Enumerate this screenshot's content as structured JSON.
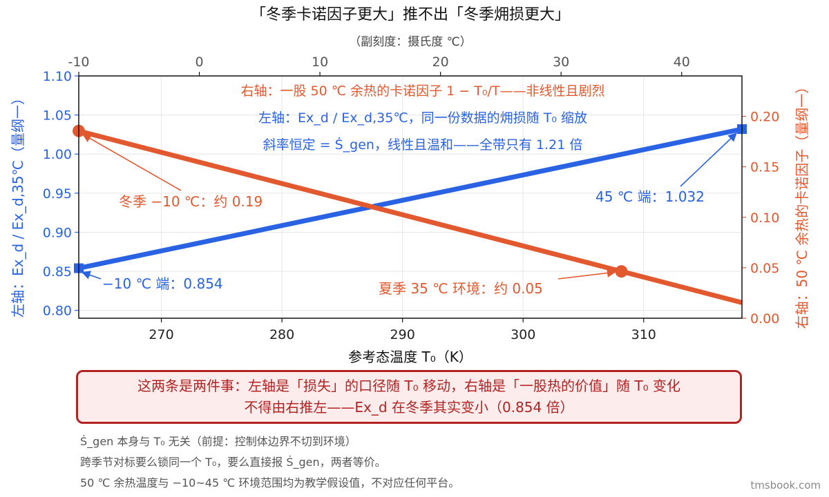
{
  "chart_data": {
    "type": "line",
    "title": "「冬季卡诺因子更大」推不出「冬季㶲损更大」",
    "top_axis": {
      "label": "（副刻度：摄氏度 ℃）",
      "ticks": [
        -10,
        0,
        10,
        20,
        30,
        40
      ],
      "tick_labels": [
        "-10",
        "0",
        "10",
        "20",
        "30",
        "40"
      ]
    },
    "xlabel": "参考态温度 T₀（K）",
    "xlim": [
      263.15,
      318.15
    ],
    "xticks": [
      270,
      280,
      290,
      300,
      310
    ],
    "xtick_labels": [
      "270",
      "280",
      "290",
      "300",
      "310"
    ],
    "ylabel_left": "左轴：Ex_d / Ex_d,35℃（量纲一）",
    "ylim_left": [
      0.79,
      1.1
    ],
    "yticks_left": [
      0.8,
      0.85,
      0.9,
      0.95,
      1.0,
      1.05,
      1.1
    ],
    "ytick_labels_left": [
      "0.80",
      "0.85",
      "0.90",
      "0.95",
      "1.00",
      "1.05",
      "1.10"
    ],
    "ylabel_right": "右轴：50 ℃ 余热的卡诺因子（量纲一）",
    "ylim_right": [
      0.0,
      0.24
    ],
    "yticks_right": [
      0.0,
      0.05,
      0.1,
      0.15,
      0.2
    ],
    "ytick_labels_right": [
      "0.00",
      "0.05",
      "0.10",
      "0.15",
      "0.20"
    ],
    "grid": true,
    "colors": {
      "left": "#2962e3",
      "right": "#e2582f"
    },
    "series": [
      {
        "axis": "left",
        "x": [
          263.15,
          318.15
        ],
        "y": [
          0.854,
          1.032
        ]
      },
      {
        "axis": "right",
        "x": [
          263.15,
          318.15
        ],
        "y": [
          0.1855,
          0.0155
        ]
      }
    ],
    "markers": [
      {
        "axis": "left",
        "shape": "square",
        "x": 263.15,
        "y": 0.854
      },
      {
        "axis": "left",
        "shape": "square",
        "x": 318.15,
        "y": 1.032
      },
      {
        "axis": "right",
        "shape": "circle",
        "x": 263.15,
        "y": 0.1855
      },
      {
        "axis": "right",
        "shape": "circle",
        "x": 308.15,
        "y": 0.0464
      }
    ],
    "annotations": {
      "line1": "右轴：一股 50 ℃ 余热的卡诺因子 1 − T₀/T——非线性且剧烈",
      "line2": "左轴：Ex_d / Ex_d,35℃，同一份数据的㶲损随 T₀ 缩放",
      "line3": "斜率恒定 = Ṡ_gen，线性且温和——全带只有 1.21 倍",
      "winter": "冬季 −10 ℃：约 0.19",
      "right_end": "45 ℃ 端：1.032",
      "left_end": "−10 ℃ 端：0.854",
      "summer": "夏季 35 ℃ 环境：约 0.05"
    }
  },
  "callout": {
    "line1": "这两条是两件事：左轴是「损失」的口径随 T₀ 移动，右轴是「一股热的价值」随 T₀ 变化",
    "line2": "不得由右推左——Ex_d 在冬季其实变小（0.854 倍）"
  },
  "footnotes": [
    "Ṡ_gen 本身与 T₀ 无关（前提：控制体边界不切到环境）",
    "跨季节对标要么锁同一个 T₀，要么直接报 Ṡ_gen，两者等价。",
    "50 ℃ 余热温度与 −10~45 ℃ 环境范围均为教学假设值，不对应任何平台。"
  ],
  "brand": "tmsbook.com"
}
